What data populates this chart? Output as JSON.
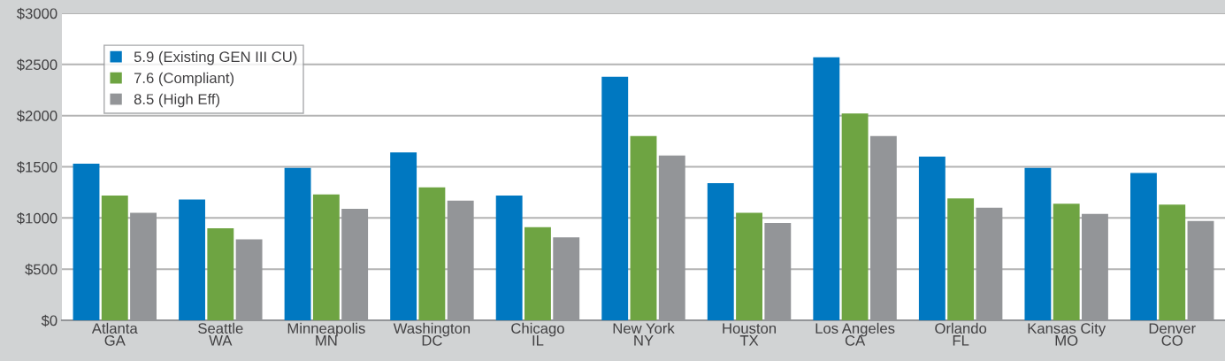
{
  "chart_data": {
    "type": "bar",
    "categories": [
      "Atlanta\nGA",
      "Seattle\nWA",
      "Minneapolis\nMN",
      "Washington\nDC",
      "Chicago\nIL",
      "New York\nNY",
      "Houston\nTX",
      "Los Angeles\nCA",
      "Orlando\nFL",
      "Kansas City\nMO",
      "Denver\nCO"
    ],
    "series": [
      {
        "name": "5.9 (Existing GEN III CU)",
        "color": "#0078c1",
        "values": [
          1530,
          1180,
          1490,
          1640,
          1220,
          2380,
          1340,
          2570,
          1600,
          1490,
          1440
        ]
      },
      {
        "name": "7.6 (Compliant)",
        "color": "#6ea442",
        "values": [
          1220,
          900,
          1230,
          1300,
          910,
          1800,
          1050,
          2020,
          1190,
          1140,
          1130
        ]
      },
      {
        "name": "8.5 (High Eff)",
        "color": "#939598",
        "values": [
          1050,
          790,
          1090,
          1170,
          810,
          1610,
          950,
          1800,
          1100,
          1040,
          970
        ]
      }
    ],
    "ylim": [
      0,
      3000
    ],
    "yticks": [
      {
        "value": 0,
        "label": "$0"
      },
      {
        "value": 500,
        "label": "$500"
      },
      {
        "value": 1000,
        "label": "$1000"
      },
      {
        "value": 1500,
        "label": "$1500"
      },
      {
        "value": 2000,
        "label": "$2000"
      },
      {
        "value": 2500,
        "label": "$2500"
      },
      {
        "value": 3000,
        "label": "$3000"
      }
    ],
    "grid": "y",
    "legend": "top left"
  }
}
